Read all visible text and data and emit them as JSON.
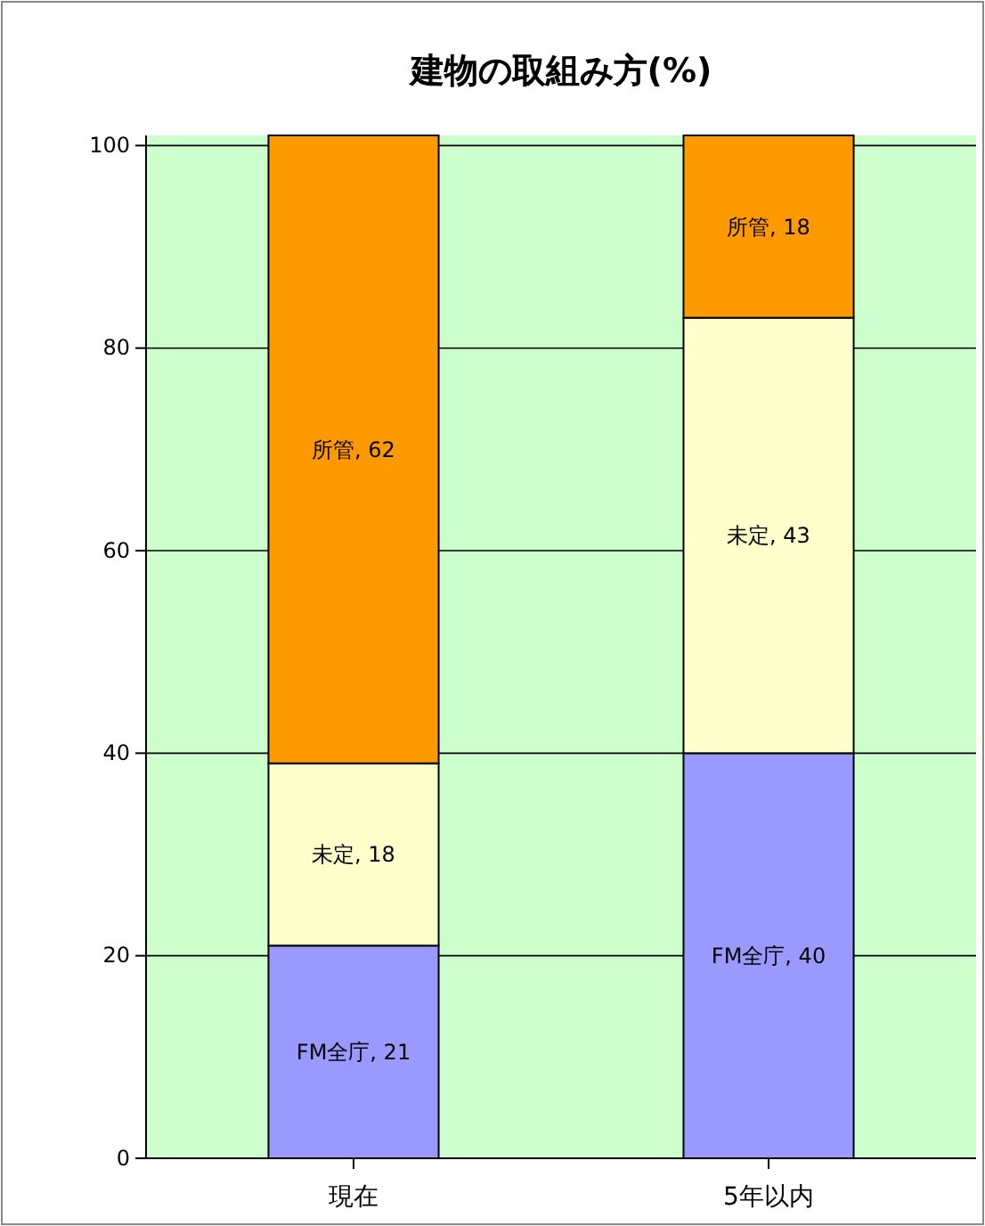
{
  "chart_data": {
    "type": "bar",
    "title": "建物の取組み方(%)",
    "stacked": true,
    "grid": "y",
    "categories": [
      "現在",
      "5年以内"
    ],
    "series": [
      {
        "color": "#9999ff",
        "values": [
          21,
          40
        ],
        "value_labels": [
          "FM全庁, 21",
          "FM全庁, 40"
        ]
      },
      {
        "color": "#ffffcc",
        "values": [
          18,
          43
        ],
        "value_labels": [
          "未定, 18",
          "未定, 43"
        ]
      },
      {
        "color": "#ff9900",
        "values": [
          62,
          18
        ],
        "value_labels": [
          "所管, 62",
          "所管, 18"
        ]
      }
    ],
    "ylim": [
      0,
      101
    ],
    "yticks": [
      0,
      20,
      40,
      60,
      80,
      100
    ]
  }
}
